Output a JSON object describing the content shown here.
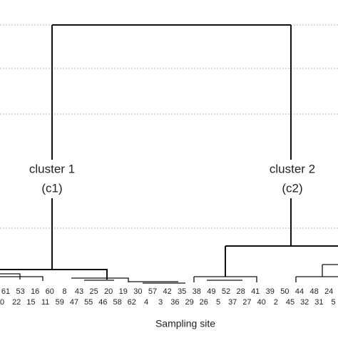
{
  "chart_data": {
    "type": "dendrogram",
    "x_label": "Sampling site",
    "leaf_labels_top": [
      "61",
      "53",
      "16",
      "60",
      "8",
      "43",
      "25",
      "20",
      "19",
      "30",
      "57",
      "42",
      "35",
      "38",
      "49",
      "52",
      "28",
      "41",
      "39",
      "50",
      "44",
      "48",
      "24"
    ],
    "leaf_labels_bottom": [
      "0",
      "22",
      "15",
      "11",
      "59",
      "47",
      "55",
      "46",
      "58",
      "62",
      "4",
      "3",
      "36",
      "29",
      "26",
      "5",
      "37",
      "27",
      "40",
      "2",
      "45",
      "32",
      "31",
      "5"
    ],
    "annotations": [
      {
        "name": "cluster 1",
        "code": "(c1)"
      },
      {
        "name": "cluster 2",
        "code": "(c2)"
      }
    ],
    "grid": true
  }
}
